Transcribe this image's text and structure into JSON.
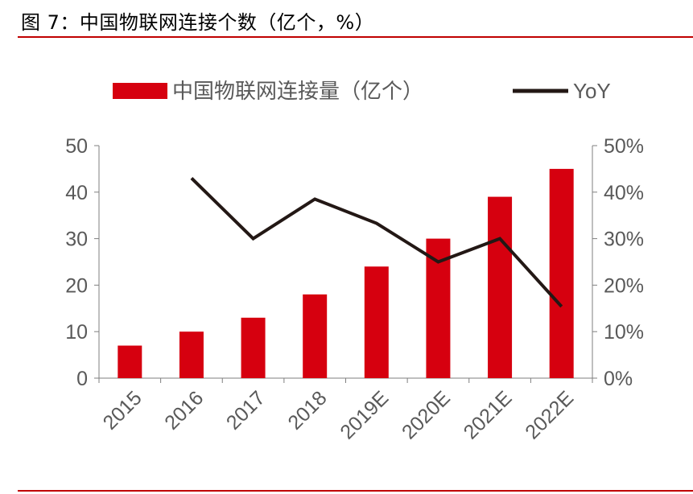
{
  "figure": {
    "title": "图 7：中国物联网连接个数（亿个，%）"
  },
  "colors": {
    "bar": "#d6000f",
    "line": "#231815",
    "axis": "#7f7f7f",
    "rule": "#c00000",
    "text": "#595959"
  },
  "chart_data": {
    "type": "bar",
    "categories": [
      "2015",
      "2016",
      "2017",
      "2018",
      "2019E",
      "2020E",
      "2021E",
      "2022E"
    ],
    "series": [
      {
        "name": "中国物联网连接量（亿个）",
        "type": "bar",
        "axis": "left",
        "values": [
          7,
          10,
          13,
          18,
          24,
          30,
          39,
          45
        ]
      },
      {
        "name": "YoY",
        "type": "line",
        "axis": "right",
        "values": [
          null,
          43,
          30,
          38.5,
          33.3,
          25,
          30,
          15.4
        ]
      }
    ],
    "y_left": {
      "min": 0,
      "max": 50,
      "ticks": [
        0,
        10,
        20,
        30,
        40,
        50
      ],
      "tick_labels": [
        "0",
        "10",
        "20",
        "30",
        "40",
        "50"
      ]
    },
    "y_right": {
      "min": 0,
      "max": 50,
      "ticks": [
        0,
        10,
        20,
        30,
        40,
        50
      ],
      "tick_labels": [
        "0%",
        "10%",
        "20%",
        "30%",
        "40%",
        "50%"
      ]
    },
    "legend": {
      "position": "top",
      "items": [
        {
          "label": "中国物联网连接量（亿个）",
          "kind": "bar"
        },
        {
          "label": "YoY",
          "kind": "line"
        }
      ]
    }
  }
}
